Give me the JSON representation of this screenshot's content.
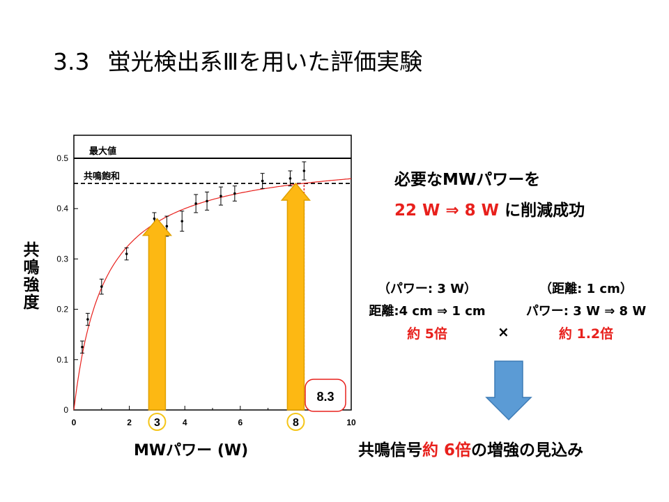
{
  "slide": {
    "title_number": "3.3",
    "title_text": "蛍光検出系Ⅲを用いた評価実験"
  },
  "chart_data": {
    "type": "scatter",
    "xlabel": "MWパワー (W)",
    "ylabel": "共鳴強度",
    "xlim": [
      0,
      10
    ],
    "ylim": [
      0,
      0.5
    ],
    "x_ticks": [
      "0",
      "2",
      "4",
      "6",
      "8",
      "10"
    ],
    "y_ticks": [
      "0",
      "0.1",
      "0.2",
      "0.3",
      "0.4",
      "0.5"
    ],
    "points": [
      {
        "x": 0.3,
        "y": 0.125,
        "err": 0.012
      },
      {
        "x": 0.5,
        "y": 0.18,
        "err": 0.012
      },
      {
        "x": 1.0,
        "y": 0.245,
        "err": 0.015
      },
      {
        "x": 1.9,
        "y": 0.31,
        "err": 0.012
      },
      {
        "x": 2.9,
        "y": 0.38,
        "err": 0.012
      },
      {
        "x": 3.35,
        "y": 0.365,
        "err": 0.02
      },
      {
        "x": 3.9,
        "y": 0.375,
        "err": 0.02
      },
      {
        "x": 4.4,
        "y": 0.41,
        "err": 0.018
      },
      {
        "x": 4.8,
        "y": 0.415,
        "err": 0.018
      },
      {
        "x": 5.3,
        "y": 0.425,
        "err": 0.018
      },
      {
        "x": 5.8,
        "y": 0.43,
        "err": 0.015
      },
      {
        "x": 6.8,
        "y": 0.455,
        "err": 0.015
      },
      {
        "x": 7.8,
        "y": 0.46,
        "err": 0.015
      },
      {
        "x": 8.3,
        "y": 0.475,
        "err": 0.018
      }
    ],
    "fit_curve": {
      "amplitude": 0.51,
      "half": 1.1
    },
    "max_line": {
      "y": 0.5,
      "label": "最大値"
    },
    "saturation_line": {
      "y": 0.45,
      "label": "共鳴飽和"
    },
    "arrows": [
      {
        "x": 3.0,
        "y": 0.38,
        "label": "3"
      },
      {
        "x": 8.0,
        "y": 0.45,
        "label": "8"
      }
    ],
    "dashed_vertical": {
      "x": 8.3,
      "label": "8.3"
    },
    "colors": {
      "fit": "#e8201c",
      "arrow_fill": "#fdb813",
      "arrow_stroke": "#e0a000",
      "circle": "#f5c518"
    }
  },
  "right_panel": {
    "line1": "必要なMWパワーを",
    "line2_red": "22 W ⇒ 8 W",
    "line2_rest": " に削減成功",
    "block_left": {
      "paren": "（パワー: 3 W）",
      "main": "距離:4 cm ⇒ 1 cm",
      "result": "約 5倍"
    },
    "block_right": {
      "paren": "（距離: 1 cm）",
      "main": "パワー: 3 W ⇒ 8 W",
      "result": "約 1.2倍"
    },
    "times": "×",
    "conclusion_pre": "共鳴信号",
    "conclusion_red": "約 6倍",
    "conclusion_post": "の増強の見込み",
    "down_arrow_color": "#5b9bd5"
  }
}
